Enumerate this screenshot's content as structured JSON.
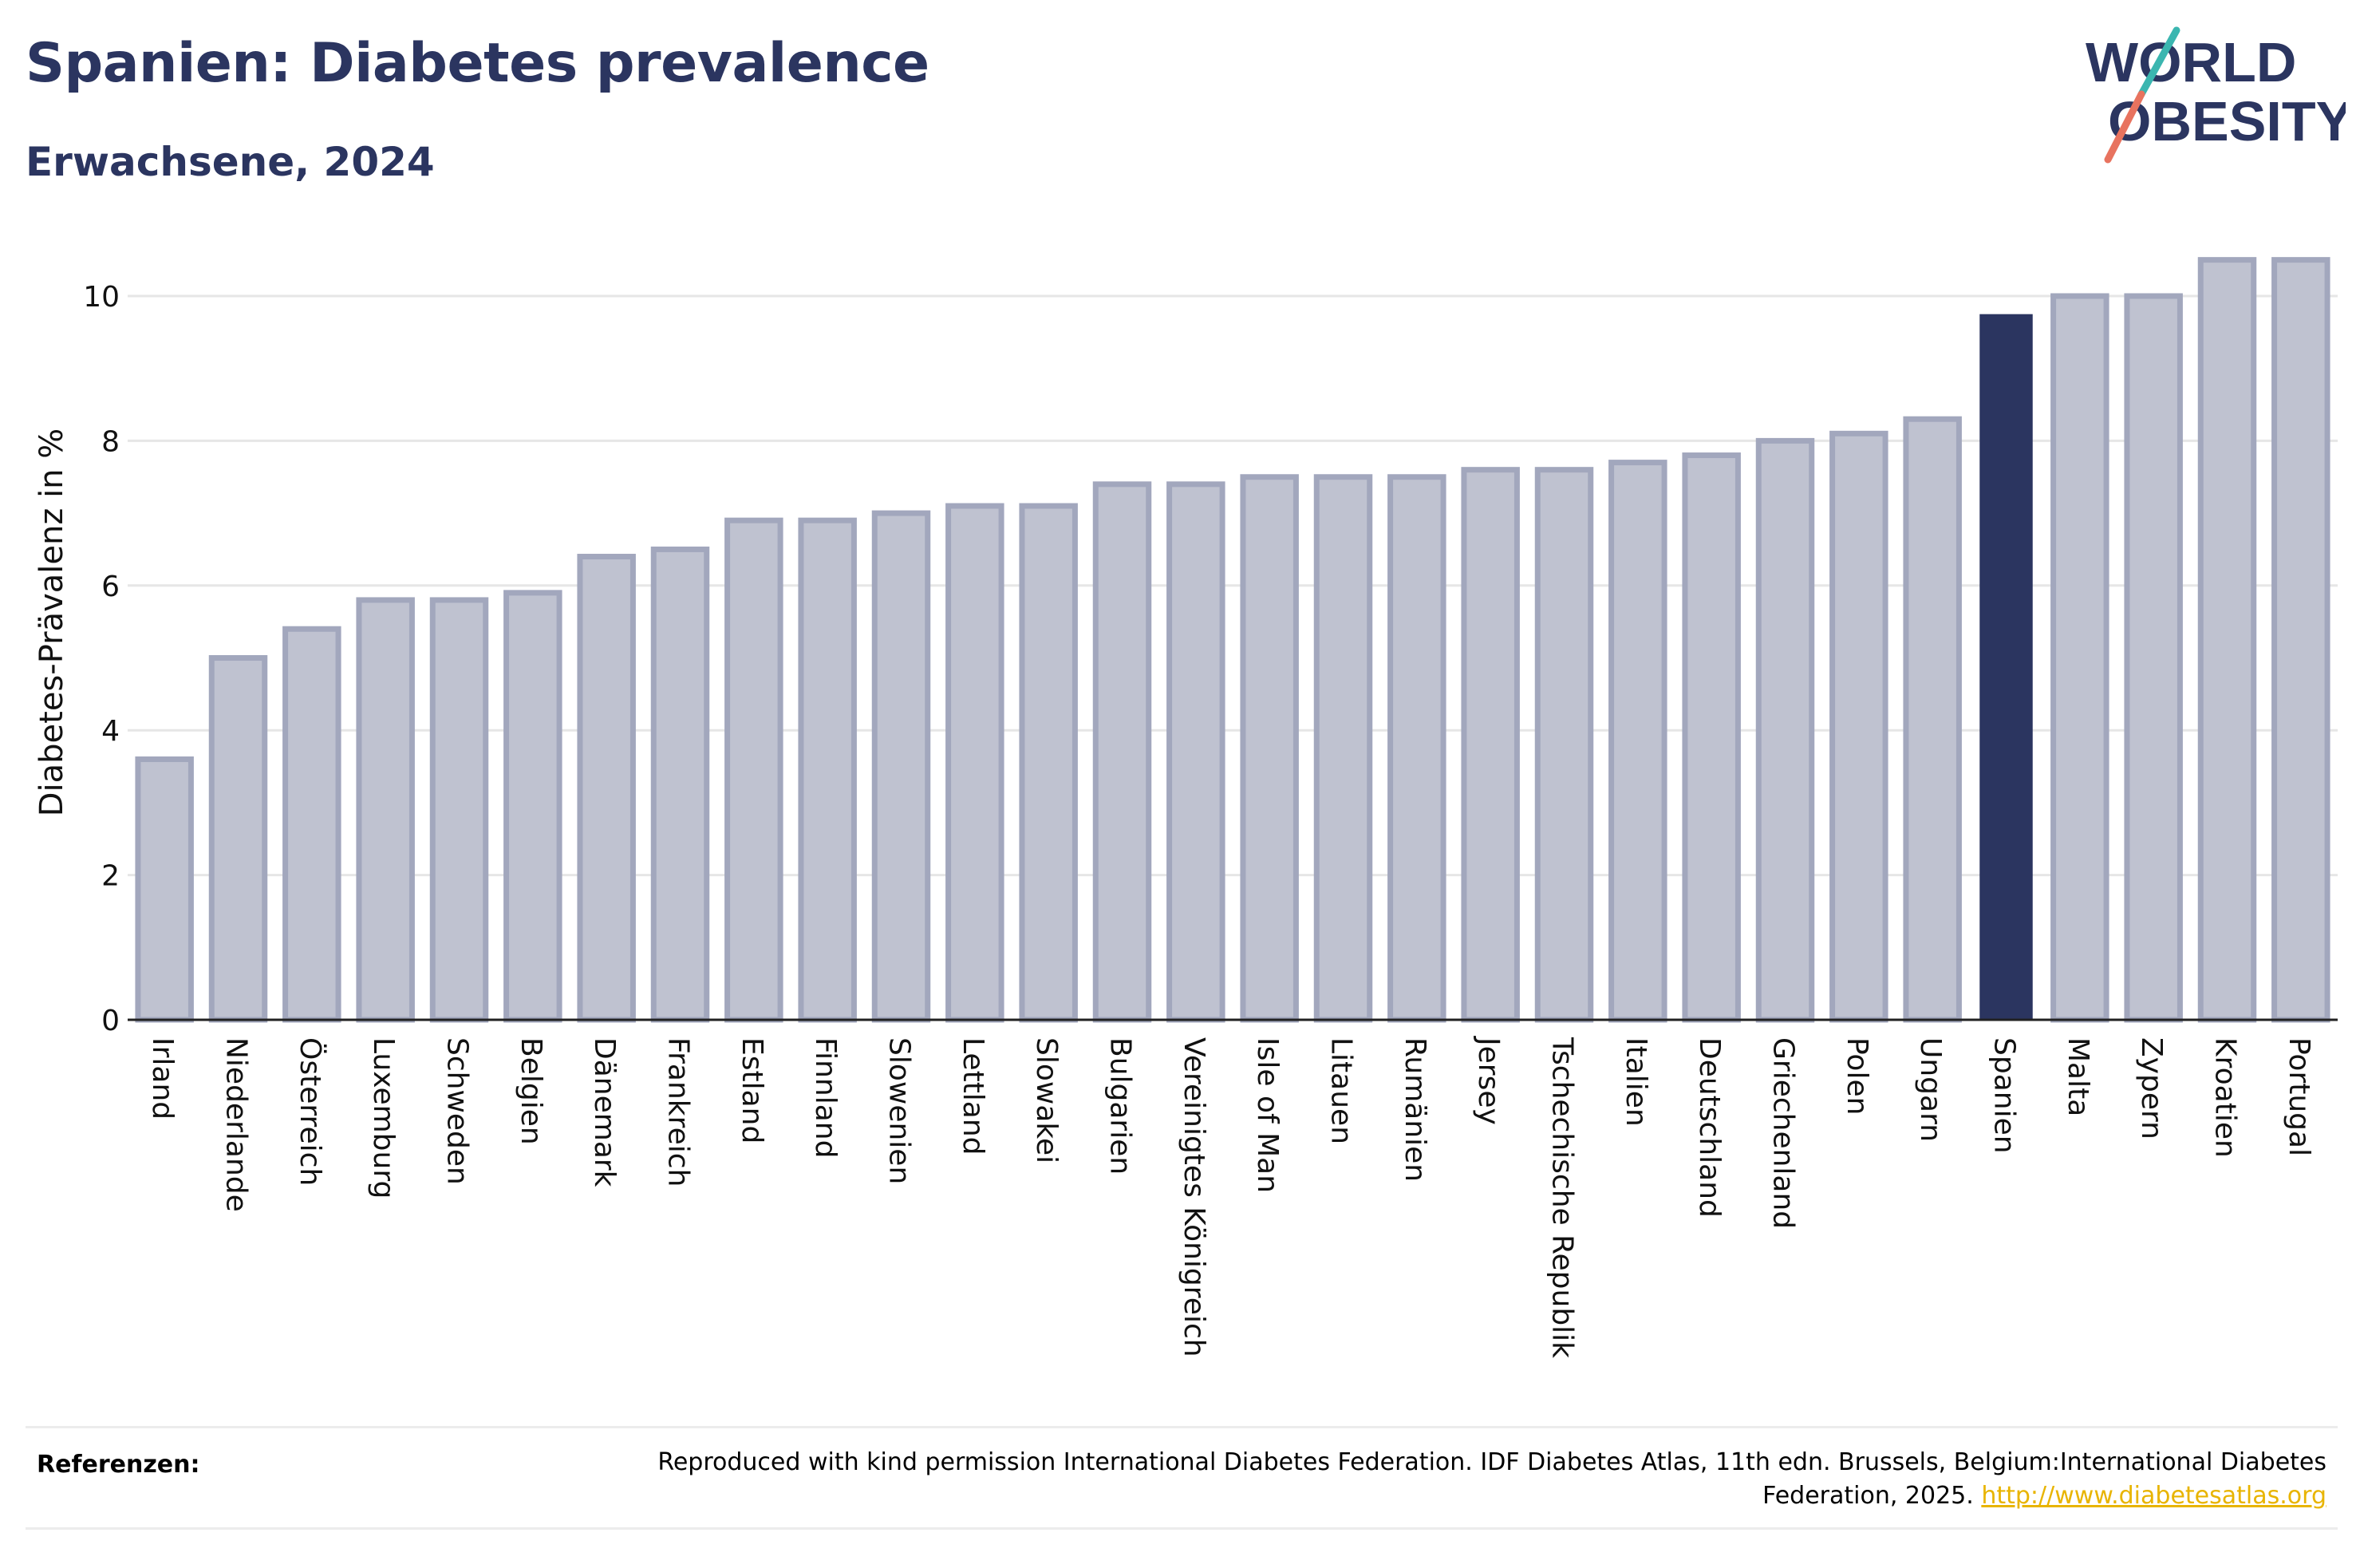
{
  "title": "Spanien: Diabetes prevalence",
  "subtitle": "Erwachsene, 2024",
  "logo": {
    "line1": "WORLD",
    "line2": "OBESITY"
  },
  "footer": {
    "label": "Referenzen:",
    "text": "Reproduced with kind permission International Diabetes Federation. IDF Diabetes Atlas, 11th edn. Brussels, Belgium:International Diabetes Federation, 2025.",
    "link": "http://www.diabetesatlas.org"
  },
  "colors": {
    "highlight": "#2b3560",
    "bar_fill": "#bfc2d0",
    "bar_stroke": "#a2a7bd",
    "text": "#2b3560"
  },
  "chart_data": {
    "type": "bar",
    "title": "Spanien: Diabetes prevalence",
    "subtitle": "Erwachsene, 2024",
    "xlabel": "",
    "ylabel": "Diabetes-Prävalenz in %",
    "ylim": [
      0,
      11
    ],
    "yticks": [
      0,
      2,
      4,
      6,
      8,
      10
    ],
    "grid": true,
    "highlight": "Spanien",
    "categories": [
      "Irland",
      "Niederlande",
      "Österreich",
      "Luxemburg",
      "Schweden",
      "Belgien",
      "Dänemark",
      "Frankreich",
      "Estland",
      "Finnland",
      "Slowenien",
      "Lettland",
      "Slowakei",
      "Bulgarien",
      "Vereinigtes Königreich",
      "Isle of Man",
      "Litauen",
      "Rumänien",
      "Jersey",
      "Tschechische Republik",
      "Italien",
      "Deutschland",
      "Griechenland",
      "Polen",
      "Ungarn",
      "Spanien",
      "Malta",
      "Zypern",
      "Kroatien",
      "Portugal"
    ],
    "values": [
      3.6,
      5.0,
      5.4,
      5.8,
      5.8,
      5.9,
      6.4,
      6.5,
      6.9,
      6.9,
      7.0,
      7.1,
      7.1,
      7.4,
      7.4,
      7.5,
      7.5,
      7.5,
      7.6,
      7.6,
      7.7,
      7.8,
      8.0,
      8.1,
      8.3,
      9.75,
      10.0,
      10.0,
      10.5,
      10.5
    ]
  }
}
